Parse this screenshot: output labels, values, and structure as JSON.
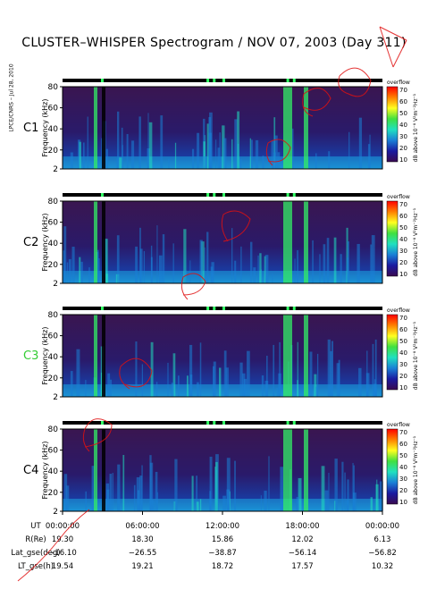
{
  "title": "CLUSTER–WHISPER Spectrogram / NOV 07, 2003 (Day 311)",
  "credit": "LPCE/CNRS – Jul 28, 2010",
  "chart_data": [
    {
      "type": "heatmap",
      "panel": "C1",
      "label_color": "#000000",
      "ylabel": "Frequency (kHz)",
      "yticks": [
        2,
        20,
        40,
        60,
        80
      ],
      "ylim": [
        2,
        80
      ],
      "colorbar": {
        "label": "dB above 10⁻⁸ V²m⁻²Hz⁻¹",
        "ticks": [
          10,
          20,
          30,
          40,
          50,
          60,
          70
        ],
        "top_label": "overflow"
      }
    },
    {
      "type": "heatmap",
      "panel": "C2",
      "label_color": "#000000",
      "ylabel": "Frequency (kHz)",
      "yticks": [
        2,
        20,
        40,
        60,
        80
      ],
      "ylim": [
        2,
        80
      ],
      "colorbar": {
        "label": "dB above 10⁻⁸ V²m⁻²Hz⁻¹",
        "ticks": [
          10,
          20,
          30,
          40,
          50,
          60,
          70
        ],
        "top_label": "overflow"
      }
    },
    {
      "type": "heatmap",
      "panel": "C3",
      "label_color": "#33cc33",
      "ylabel": "Frequency (kHz)",
      "yticks": [
        2,
        20,
        40,
        60,
        80
      ],
      "ylim": [
        2,
        80
      ],
      "colorbar": {
        "label": "dB above 10⁻⁸ V²m⁻²Hz⁻¹",
        "ticks": [
          10,
          20,
          30,
          40,
          50,
          60,
          70
        ],
        "top_label": "overflow"
      }
    },
    {
      "type": "heatmap",
      "panel": "C4",
      "label_color": "#000000",
      "ylabel": "Frequency (kHz)",
      "yticks": [
        2,
        20,
        40,
        60,
        80
      ],
      "ylim": [
        2,
        80
      ],
      "colorbar": {
        "label": "dB above 10⁻⁸ V²m⁻²Hz⁻¹",
        "ticks": [
          10,
          20,
          30,
          40,
          50,
          60,
          70
        ],
        "top_label": "overflow"
      }
    }
  ],
  "time_axis": {
    "ticks": [
      "00:00:00",
      "06:00:00",
      "12:00:00",
      "18:00:00",
      "00:00:00"
    ]
  },
  "ephemeris": [
    {
      "label": "UT",
      "values": [
        "00:00:00",
        "06:00:00",
        "12:00:00",
        "18:00:00",
        "00:00:00"
      ]
    },
    {
      "label": "R(Re)",
      "values": [
        "19.30",
        "18.30",
        "15.86",
        "12.02",
        "6.13"
      ]
    },
    {
      "label": "Lat_gse(deg)",
      "values": [
        "−16.10",
        "−26.55",
        "−38.87",
        "−56.14",
        "−56.82"
      ]
    },
    {
      "label": "LT_gse(h)",
      "values": [
        "19.54",
        "19.21",
        "18.72",
        "17.57",
        "10.32"
      ]
    }
  ],
  "colors": {
    "background": "#2a1a4a",
    "high": "#33ff66",
    "mid": "#1a7fd6",
    "colorscale": [
      "#3a0a50",
      "#1a1aa0",
      "#1a7fd6",
      "#20e0c0",
      "#40e040",
      "#ffff20",
      "#ff8000",
      "#ff0000"
    ]
  }
}
